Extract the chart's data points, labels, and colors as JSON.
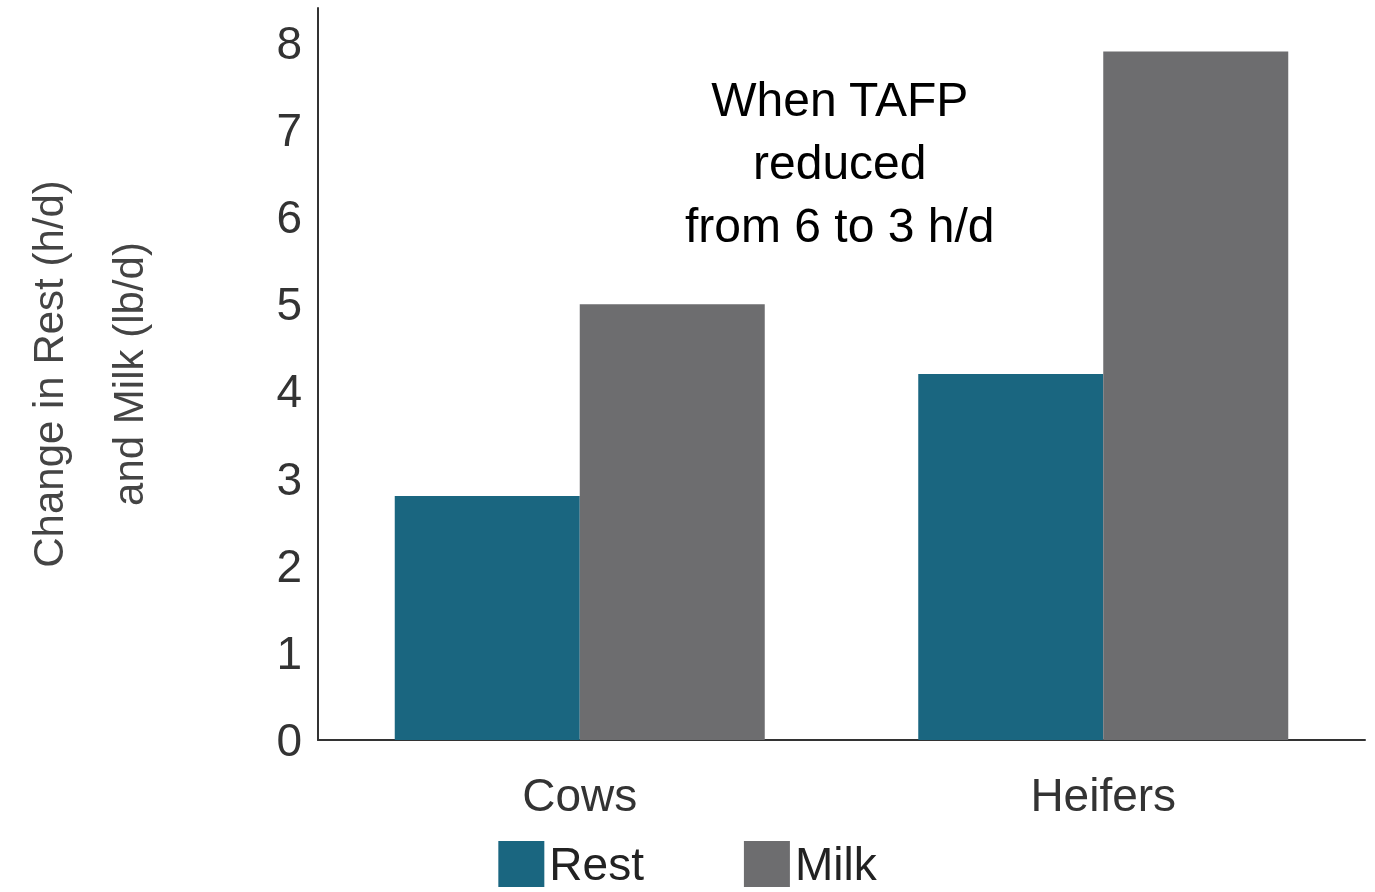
{
  "chart_data": {
    "type": "bar",
    "ylabel": "Change in Rest (h/d)\nand Milk (lb/d)",
    "categories": [
      "Cows",
      "Heifers"
    ],
    "series": [
      {
        "name": "Rest",
        "color": "#1a6680",
        "values": [
          2.8,
          4.2
        ]
      },
      {
        "name": "Milk",
        "color": "#6d6d6f",
        "values": [
          5.0,
          7.9
        ]
      }
    ],
    "ylim": [
      0,
      8.4
    ],
    "yticks": [
      0,
      1,
      2,
      3,
      4,
      5,
      6,
      7,
      8
    ],
    "grid": false,
    "legend": "bottom",
    "annotations": [
      "When TAFP\nreduced\nfrom 6 to 3 h/d"
    ]
  }
}
